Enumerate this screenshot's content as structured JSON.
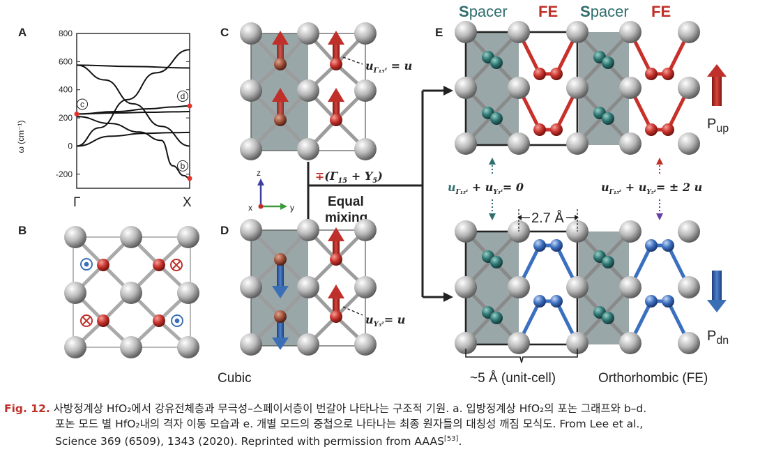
{
  "panels": {
    "a": "A",
    "b": "B",
    "c": "C",
    "d": "D",
    "e": "E"
  },
  "chart_data": {
    "type": "line",
    "title": "",
    "xlabel": "",
    "ylabel": "ω (cm⁻¹)",
    "x_ticks": [
      "Γ",
      "X"
    ],
    "y_ticks": [
      800,
      600,
      400,
      200,
      0,
      -200
    ],
    "ylim": [
      -300,
      800
    ],
    "grid": false,
    "series": [
      {
        "x": [
          0,
          0.5,
          1
        ],
        "values": [
          575,
          565,
          555
        ]
      },
      {
        "x": [
          0,
          0.25,
          0.5,
          0.75,
          1
        ],
        "values": [
          575,
          470,
          300,
          140,
          0
        ]
      },
      {
        "x": [
          0,
          0.2,
          0.45,
          0.7,
          1
        ],
        "values": [
          0,
          130,
          330,
          520,
          685
        ]
      },
      {
        "x": [
          0,
          0.3,
          0.6,
          0.85,
          1
        ],
        "values": [
          0,
          70,
          90,
          95,
          97
        ]
      },
      {
        "x": [
          0,
          0.35,
          0.65,
          0.85,
          1
        ],
        "values": [
          228,
          235,
          240,
          243,
          245
        ]
      },
      {
        "x": [
          0,
          0.35,
          0.65,
          0.85,
          1
        ],
        "values": [
          228,
          245,
          265,
          278,
          285
        ]
      },
      {
        "x": [
          0,
          0.3,
          0.55,
          0.75,
          0.85,
          0.95,
          1
        ],
        "values": [
          210,
          160,
          100,
          40,
          -140,
          -210,
          -230
        ]
      }
    ],
    "markers": [
      {
        "label": "c",
        "x": 0,
        "y": 228
      },
      {
        "label": "d",
        "x": 1,
        "y": 285
      },
      {
        "label": "b",
        "x": 1,
        "y": -230
      }
    ]
  },
  "c_label": "u",
  "d_label": "u",
  "mix_label": "∓(Γ",
  "equal": "Equal",
  "mixing": "mixing",
  "axes": {
    "z": "z",
    "x": "x",
    "y": "y"
  },
  "cubic": "Cubic",
  "unit_cell": "~5 Å (unit-cell)",
  "ortho": "Orthorhombic (FE)",
  "spacer": "Spacer",
  "fe": "FE",
  "dist": "2.7 Å",
  "eq_zero": "= 0",
  "eq_two": "= ± 2 u",
  "p_up": "P",
  "p_up_sub": "up",
  "p_dn": "P",
  "p_dn_sub": "dn",
  "colors": {
    "red": "#c0302a",
    "blue": "#3a6fb6",
    "teal": "#2e6e6c",
    "purple": "#6a3fa8",
    "gray": "#9aa5a8"
  },
  "caption": {
    "figno": "Fig. 12.",
    "line1": " 사방정계상 HfO₂에서 강유전체층과 무극성–스페이서층이 번갈아 나타나는 구조적 기원. a. 입방정계상 HfO₂의 포논 그래프와 b–d.",
    "line2": "포논 모드 별 HfO₂내의 격자 이동 모습과 e. 개별 모드의 중첩으로 나타나는 최종 원자들의 대칭성 깨짐 모식도. From Lee et al.,",
    "line3": "Science 369 (6509), 1343 (2020). Reprinted with permission from AAAS",
    "ref": "[53]",
    "end": "."
  }
}
